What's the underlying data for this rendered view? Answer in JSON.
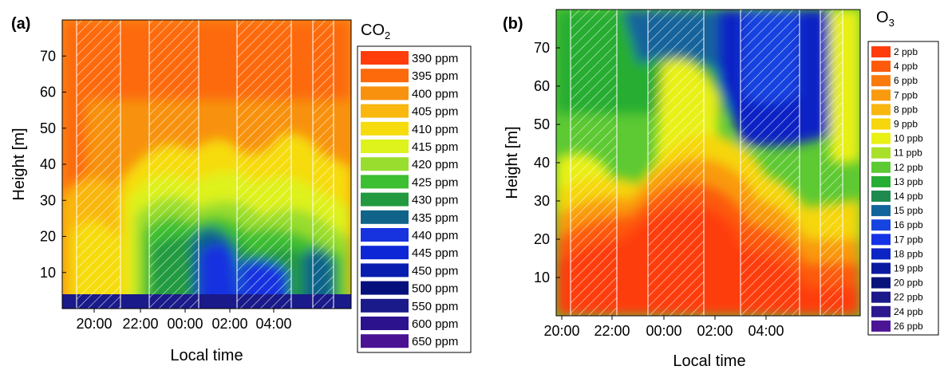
{
  "chart_data": [
    {
      "type": "heatmap",
      "panel_label": "(a)",
      "title": "CO₂",
      "xlabel": "Local time",
      "ylabel": "Height [m]",
      "x_ticks": [
        "20:00",
        "22:00",
        "00:00",
        "02:00",
        "04:00"
      ],
      "y_ticks": [
        10,
        20,
        30,
        40,
        50,
        60,
        70
      ],
      "ylim": [
        0,
        80
      ],
      "legend": [
        {
          "label": "390 ppm",
          "color": "#fe3d0b"
        },
        {
          "label": "395 ppm",
          "color": "#fd6a0c"
        },
        {
          "label": "400 ppm",
          "color": "#f8920e"
        },
        {
          "label": "405 ppm",
          "color": "#f9b70f"
        },
        {
          "label": "410 ppm",
          "color": "#f6dc0c"
        },
        {
          "label": "415 ppm",
          "color": "#def21b"
        },
        {
          "label": "420 ppm",
          "color": "#99dd2f"
        },
        {
          "label": "425 ppm",
          "color": "#3cbf30"
        },
        {
          "label": "430 ppm",
          "color": "#239a3f"
        },
        {
          "label": "435 ppm",
          "color": "#10648a"
        },
        {
          "label": "440 ppm",
          "color": "#1733e0"
        },
        {
          "label": "445 ppm",
          "color": "#0e27d6"
        },
        {
          "label": "450 ppm",
          "color": "#081cb0"
        },
        {
          "label": "500 ppm",
          "color": "#06107c"
        },
        {
          "label": "550 ppm",
          "color": "#1a1a8a"
        },
        {
          "label": "600 ppm",
          "color": "#2d128e"
        },
        {
          "label": "650 ppm",
          "color": "#4a1192"
        }
      ]
    },
    {
      "type": "heatmap",
      "panel_label": "(b)",
      "title": "O₃",
      "xlabel": "Local time",
      "ylabel": "Height [m]",
      "x_ticks": [
        "20:00",
        "22:00",
        "00:00",
        "02:00",
        "04:00"
      ],
      "y_ticks": [
        10,
        20,
        30,
        40,
        50,
        60,
        70
      ],
      "ylim": [
        0,
        80
      ],
      "legend": [
        {
          "label": "2 ppb",
          "color": "#fe3d0b"
        },
        {
          "label": "4 ppb",
          "color": "#fd5a0c"
        },
        {
          "label": "6 ppb",
          "color": "#fb7a0d"
        },
        {
          "label": "7 ppb",
          "color": "#f99a0f"
        },
        {
          "label": "8 ppb",
          "color": "#f8b60f"
        },
        {
          "label": "9 ppb",
          "color": "#f6d60c"
        },
        {
          "label": "10 ppb",
          "color": "#e9f013"
        },
        {
          "label": "11 ppb",
          "color": "#a9e02a"
        },
        {
          "label": "12 ppb",
          "color": "#5dc933"
        },
        {
          "label": "13 ppb",
          "color": "#27ad31"
        },
        {
          "label": "14 ppb",
          "color": "#1e8a4e"
        },
        {
          "label": "15 ppb",
          "color": "#13649c"
        },
        {
          "label": "16 ppb",
          "color": "#1743e0"
        },
        {
          "label": "17 ppb",
          "color": "#1533e6"
        },
        {
          "label": "18 ppb",
          "color": "#0c24c4"
        },
        {
          "label": "19 ppb",
          "color": "#0a1aa0"
        },
        {
          "label": "20 ppb",
          "color": "#08127a"
        },
        {
          "label": "22 ppb",
          "color": "#1c1a8a"
        },
        {
          "label": "24 ppb",
          "color": "#2e1890"
        },
        {
          "label": "26 ppb",
          "color": "#4c1596"
        }
      ]
    }
  ]
}
